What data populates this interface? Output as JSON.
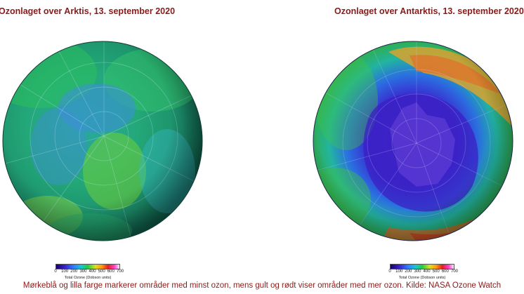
{
  "maps": {
    "arctic": {
      "title": "Ozonlaget over Arktis, 13. september 2020"
    },
    "antarctic": {
      "title": "Ozonlaget over Antarktis, 13. september 2020"
    }
  },
  "colorbar": {
    "ticks": [
      "0",
      "100",
      "200",
      "300",
      "400",
      "500",
      "600",
      "700"
    ],
    "label": "Total Ozone (Dobson units)",
    "gradient_colors": [
      "#1a0066",
      "#3a23c8",
      "#3080ff",
      "#18c8c8",
      "#28c848",
      "#d8e020",
      "#ff9a10",
      "#e22020",
      "#ff40c8",
      "#ffe8ff"
    ]
  },
  "caption": "Mørkeblå og lilla farge markerer områder med minst ozon, mens gult og rødt viser områder med mer ozon. Kilde: NASA Ozone Watch"
}
